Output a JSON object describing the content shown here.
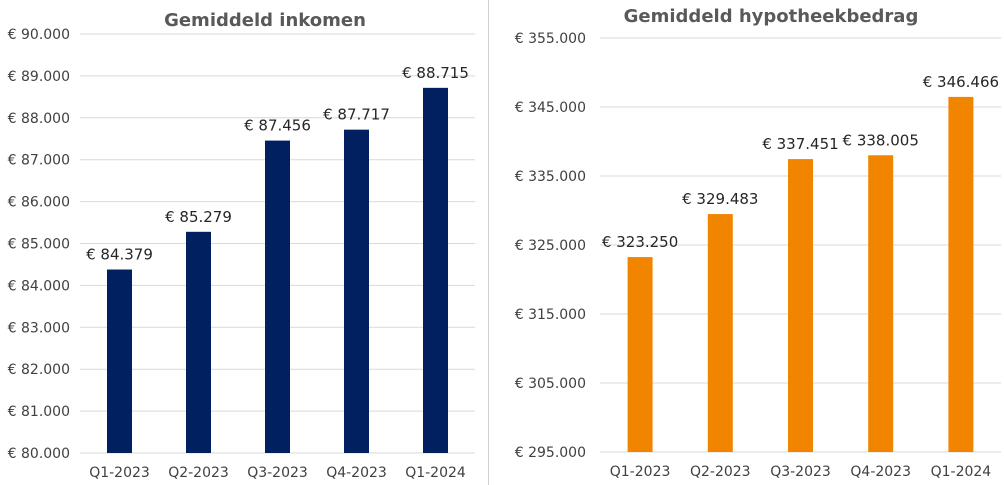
{
  "chart_data": [
    {
      "type": "bar",
      "title": "Gemiddeld inkomen",
      "categories": [
        "Q1-2023",
        "Q2-2023",
        "Q3-2023",
        "Q4-2023",
        "Q1-2024"
      ],
      "values": [
        84379,
        85279,
        87456,
        87717,
        88715
      ],
      "data_labels": [
        "€ 84.379",
        "€ 85.279",
        "€ 87.456",
        "€ 87.717",
        "€ 88.715"
      ],
      "ylim": [
        80000,
        90000
      ],
      "yticks": [
        80000,
        81000,
        82000,
        83000,
        84000,
        85000,
        86000,
        87000,
        88000,
        89000,
        90000
      ],
      "ytick_labels": [
        "€ 80.000",
        "€ 81.000",
        "€ 82.000",
        "€ 83.000",
        "€ 84.000",
        "€ 85.000",
        "€ 86.000",
        "€ 87.000",
        "€ 88.000",
        "€ 89.000",
        "€ 90.000"
      ],
      "color": "#002060",
      "grid": true,
      "legend": "none"
    },
    {
      "type": "bar",
      "title": "Gemiddeld hypotheekbedrag",
      "categories": [
        "Q1-2023",
        "Q2-2023",
        "Q3-2023",
        "Q4-2023",
        "Q1-2024"
      ],
      "values": [
        323250,
        329483,
        337451,
        338005,
        346466
      ],
      "data_labels": [
        "€ 323.250",
        "€ 329.483",
        "€ 337.451",
        "€ 338.005",
        "€ 346.466"
      ],
      "ylim": [
        295000,
        355000
      ],
      "yticks": [
        295000,
        305000,
        315000,
        325000,
        335000,
        345000,
        355000
      ],
      "ytick_labels": [
        "€ 295.000",
        "€ 305.000",
        "€ 315.000",
        "€ 325.000",
        "€ 335.000",
        "€ 345.000",
        "€ 355.000"
      ],
      "color": "#F28500",
      "grid": true,
      "legend": "none"
    }
  ]
}
